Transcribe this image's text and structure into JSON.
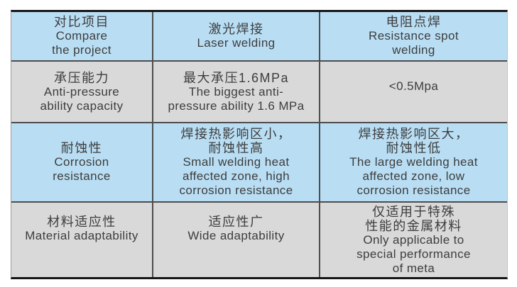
{
  "colors": {
    "header_blue": "#b9def4",
    "row_gray": "#d9d9d9",
    "grid_line": "#4d4d4d",
    "outer_border": "#161616",
    "text": "#3d3d3d"
  },
  "table": {
    "header": [
      {
        "zh": "对比项目",
        "en": "Compare\nthe project"
      },
      {
        "zh": "激光焊接",
        "en": "Laser welding"
      },
      {
        "zh": "电阻点焊",
        "en": "Resistance spot\nwelding"
      }
    ],
    "rows": [
      [
        {
          "zh": "承压能力",
          "en": "Anti-pressure\nability capacity"
        },
        {
          "zh": "最大承压1.6MPa",
          "en": "The biggest anti-\npressure ability 1.6 MPa"
        },
        {
          "zh": "",
          "en": "<0.5Mpa"
        }
      ],
      [
        {
          "zh": "耐蚀性",
          "en": "Corrosion\nresistance"
        },
        {
          "zh": "焊接热影响区小，\n耐蚀性高",
          "en": "Small welding heat\naffected zone, high\ncorrosion resistance"
        },
        {
          "zh": "焊接热影响区大，\n耐蚀性低",
          "en": "The large welding heat\naffected zone, low\ncorrosion resistance"
        }
      ],
      [
        {
          "zh": "材料适应性",
          "en": "Material adaptability"
        },
        {
          "zh": "适应性广",
          "en": "Wide adaptability"
        },
        {
          "zh": "仅适用于特殊\n性能的金属材料",
          "en": "Only applicable to\nspecial performance\nof meta"
        }
      ]
    ]
  }
}
